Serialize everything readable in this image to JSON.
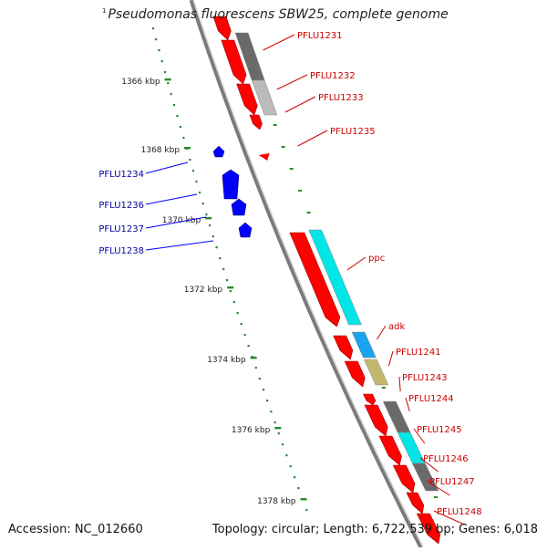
{
  "title": {
    "superscript": "1",
    "organism": "Pseudomonas fluorescens SBW25, complete genome"
  },
  "footer": {
    "accession": "Accession: NC_012660",
    "summary": "Topology: circular; Length: 6,722,539 bp; Genes: 6,018"
  },
  "colors": {
    "backbone": "#7a7a7a",
    "forward_gene": "#ff0000",
    "reverse_gene": "#0000ff",
    "forward_label": "#cc0000",
    "reverse_label": "#000099",
    "scale_dots": "#2a8a2a",
    "cds_dark": "#6a6a6a",
    "cds_light": "#bbbbbb",
    "cds_cyan": "#00e5e5",
    "cds_blue": "#1aa3ee",
    "cds_olive": "#c2b96e"
  },
  "scale_ticks": [
    {
      "label": "1366 kbp"
    },
    {
      "label": "1368 kbp"
    },
    {
      "label": "1370 kbp"
    },
    {
      "label": "1372 kbp"
    },
    {
      "label": "1374 kbp"
    },
    {
      "label": "1376 kbp"
    },
    {
      "label": "1378 kbp"
    }
  ],
  "forward_labels": [
    {
      "name": "PFLU1231"
    },
    {
      "name": "PFLU1232"
    },
    {
      "name": "PFLU1233"
    },
    {
      "name": "PFLU1235"
    },
    {
      "name": "ppc"
    },
    {
      "name": "adk"
    },
    {
      "name": "PFLU1241"
    },
    {
      "name": "PFLU1243"
    },
    {
      "name": "PFLU1244"
    },
    {
      "name": "PFLU1245"
    },
    {
      "name": "PFLU1246"
    },
    {
      "name": "PFLU1247"
    },
    {
      "name": "PFLU1248"
    }
  ],
  "reverse_labels": [
    {
      "name": "PFLU1234"
    },
    {
      "name": "PFLU1236"
    },
    {
      "name": "PFLU1237"
    },
    {
      "name": "PFLU1238"
    }
  ]
}
